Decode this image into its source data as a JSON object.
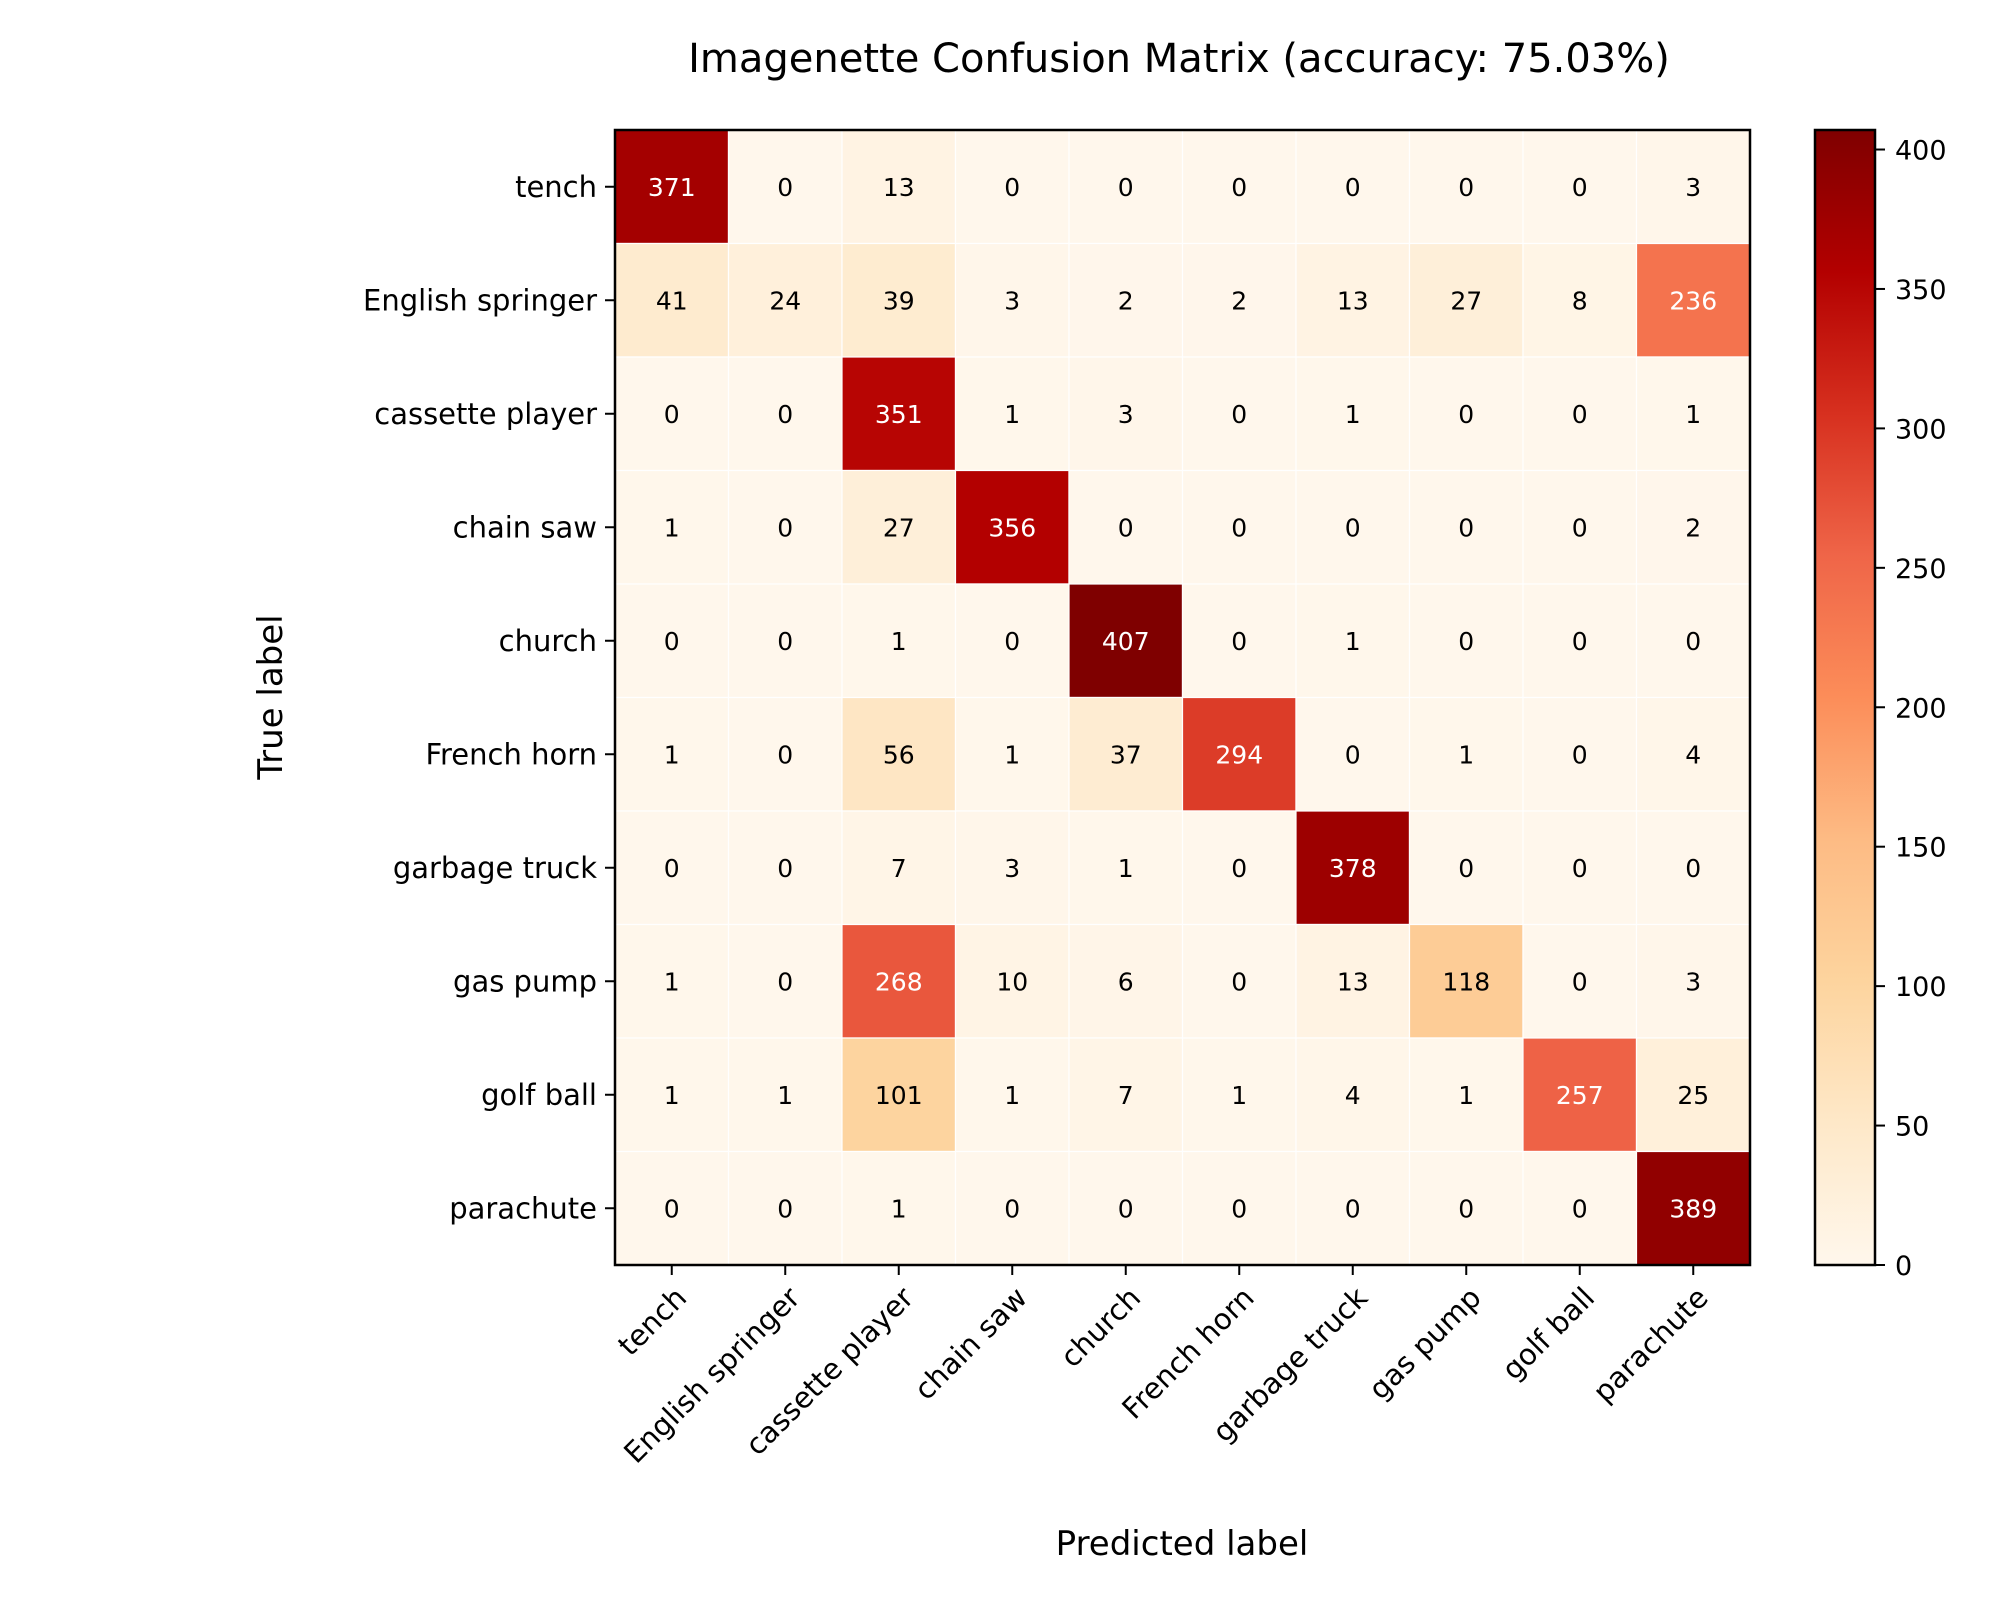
{
  "chart_data": {
    "type": "heatmap",
    "title": "Imagenette Confusion Matrix (accuracy: 75.03%)",
    "xlabel": "Predicted label",
    "ylabel": "True label",
    "x_categories": [
      "tench",
      "English springer",
      "cassette player",
      "chain saw",
      "church",
      "French horn",
      "garbage truck",
      "gas pump",
      "golf ball",
      "parachute"
    ],
    "y_categories": [
      "tench",
      "English springer",
      "cassette player",
      "chain saw",
      "church",
      "French horn",
      "garbage truck",
      "gas pump",
      "golf ball",
      "parachute"
    ],
    "matrix": [
      [
        371,
        0,
        13,
        0,
        0,
        0,
        0,
        0,
        0,
        3
      ],
      [
        41,
        24,
        39,
        3,
        2,
        2,
        13,
        27,
        8,
        236
      ],
      [
        0,
        0,
        351,
        1,
        3,
        0,
        1,
        0,
        0,
        1
      ],
      [
        1,
        0,
        27,
        356,
        0,
        0,
        0,
        0,
        0,
        2
      ],
      [
        0,
        0,
        1,
        0,
        407,
        0,
        1,
        0,
        0,
        0
      ],
      [
        1,
        0,
        56,
        1,
        37,
        294,
        0,
        1,
        0,
        4
      ],
      [
        0,
        0,
        7,
        3,
        1,
        0,
        378,
        0,
        0,
        0
      ],
      [
        1,
        0,
        268,
        10,
        6,
        0,
        13,
        118,
        0,
        3
      ],
      [
        1,
        1,
        101,
        1,
        7,
        1,
        4,
        1,
        257,
        25
      ],
      [
        0,
        0,
        1,
        0,
        0,
        0,
        0,
        0,
        0,
        389
      ]
    ],
    "colormap": "OrRd",
    "colormap_stops": [
      "#fff7ec",
      "#fee8c8",
      "#fdd49e",
      "#fdbb84",
      "#fc8d59",
      "#ef6548",
      "#d7301f",
      "#b30000",
      "#7f0000"
    ],
    "value_range": [
      0,
      407
    ],
    "colorbar": {
      "ticks": [
        0,
        50,
        100,
        150,
        200,
        250,
        300,
        350,
        400
      ],
      "placement": "right"
    },
    "text_color_threshold": 203.5,
    "text_colors": {
      "light": "#ffffff",
      "dark": "#000000"
    },
    "grid": false
  }
}
